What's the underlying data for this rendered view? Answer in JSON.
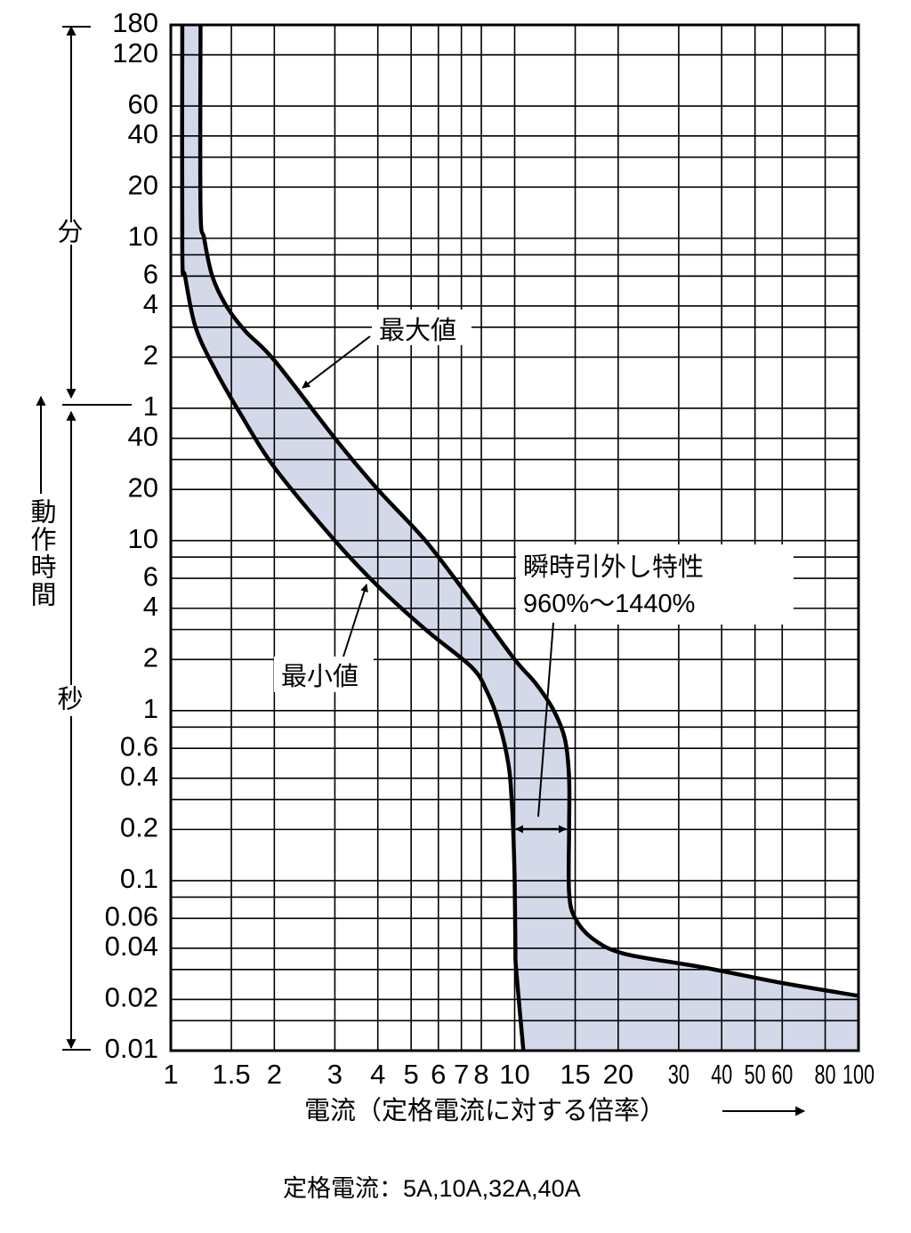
{
  "chart_data": {
    "type": "area",
    "title": "",
    "xlabel": "電流（定格電流に対する倍率）",
    "ylabel": "動作時間",
    "x_scale": "log",
    "y_scale": "log",
    "xlim": [
      1,
      100
    ],
    "ylim_seconds": [
      0.01,
      10800
    ],
    "grid": true,
    "fill_color": "#d3d9e8",
    "line_color": "#000000",
    "x_ticks": [
      {
        "value": 1,
        "label": "1"
      },
      {
        "value": 1.5,
        "label": "1.5"
      },
      {
        "value": 2,
        "label": "2"
      },
      {
        "value": 3,
        "label": "3"
      },
      {
        "value": 4,
        "label": "4"
      },
      {
        "value": 5,
        "label": "5"
      },
      {
        "value": 6,
        "label": "6"
      },
      {
        "value": 7,
        "label": "7"
      },
      {
        "value": 8,
        "label": "8"
      },
      {
        "value": 10,
        "label": "10"
      },
      {
        "value": 15,
        "label": "15"
      },
      {
        "value": 20,
        "label": "20"
      },
      {
        "value": 30,
        "label": "30"
      },
      {
        "value": 40,
        "label": "40"
      },
      {
        "value": 50,
        "label": "50"
      },
      {
        "value": 60,
        "label": "60"
      },
      {
        "value": 80,
        "label": "80"
      },
      {
        "value": 100,
        "label": "100"
      }
    ],
    "y_ticks_minutes": [
      {
        "value": 180,
        "label": "180"
      },
      {
        "value": 120,
        "label": "120"
      },
      {
        "value": 60,
        "label": "60"
      },
      {
        "value": 40,
        "label": "40"
      },
      {
        "value": 20,
        "label": "20"
      },
      {
        "value": 10,
        "label": "10"
      },
      {
        "value": 6,
        "label": "6"
      },
      {
        "value": 4,
        "label": "4"
      },
      {
        "value": 2,
        "label": "2"
      },
      {
        "value": 1,
        "label": "1"
      }
    ],
    "y_ticks_seconds": [
      {
        "value": 40,
        "label": "40"
      },
      {
        "value": 20,
        "label": "20"
      },
      {
        "value": 10,
        "label": "10"
      },
      {
        "value": 6,
        "label": "6"
      },
      {
        "value": 4,
        "label": "4"
      },
      {
        "value": 2,
        "label": "2"
      },
      {
        "value": 1,
        "label": "1"
      },
      {
        "value": 0.6,
        "label": "0.6"
      },
      {
        "value": 0.4,
        "label": "0.4"
      },
      {
        "value": 0.2,
        "label": "0.2"
      },
      {
        "value": 0.1,
        "label": "0.1"
      },
      {
        "value": 0.06,
        "label": "0.06"
      },
      {
        "value": 0.04,
        "label": "0.04"
      },
      {
        "value": 0.02,
        "label": "0.02"
      },
      {
        "value": 0.01,
        "label": "0.01"
      }
    ],
    "y_extra_gridlines_seconds": [
      7200,
      1800,
      480,
      360,
      180,
      30,
      8,
      3,
      0.8,
      0.3,
      0.08,
      0.03,
      0.015
    ],
    "series": [
      {
        "name": "最大値",
        "points": [
          [
            1.22,
            10800
          ],
          [
            1.22,
            900
          ],
          [
            1.25,
            600
          ],
          [
            1.32,
            360
          ],
          [
            1.45,
            240
          ],
          [
            1.65,
            170
          ],
          [
            2.0,
            115
          ],
          [
            3.0,
            40
          ],
          [
            4.0,
            20
          ],
          [
            5.5,
            10
          ],
          [
            7.5,
            4.4
          ],
          [
            10.0,
            2.0
          ],
          [
            11.5,
            1.45
          ],
          [
            13.0,
            1.0
          ],
          [
            14.0,
            0.68
          ],
          [
            14.4,
            0.4
          ],
          [
            14.4,
            0.2
          ],
          [
            14.4,
            0.085
          ],
          [
            15.0,
            0.06
          ],
          [
            17.0,
            0.045
          ],
          [
            21.0,
            0.037
          ],
          [
            35.0,
            0.031
          ],
          [
            60.0,
            0.025
          ],
          [
            100.0,
            0.021
          ]
        ]
      },
      {
        "name": "最小値",
        "points": [
          [
            1.08,
            10800
          ],
          [
            1.08,
            500
          ],
          [
            1.1,
            360
          ],
          [
            1.18,
            180
          ],
          [
            1.35,
            100
          ],
          [
            1.6,
            55
          ],
          [
            2.0,
            27
          ],
          [
            3.0,
            10
          ],
          [
            4.0,
            5.4
          ],
          [
            5.5,
            3.0
          ],
          [
            7.5,
            1.8
          ],
          [
            8.3,
            1.3
          ],
          [
            9.0,
            0.85
          ],
          [
            9.6,
            0.48
          ],
          [
            9.8,
            0.3
          ],
          [
            9.9,
            0.2
          ],
          [
            10.0,
            0.1
          ],
          [
            10.05,
            0.04
          ],
          [
            10.1,
            0.03
          ],
          [
            10.6,
            0.01
          ]
        ]
      }
    ],
    "annotations": {
      "max_label": "最大値",
      "min_label": "最小値",
      "instant_trip_title": "瞬時引外し特性",
      "instant_trip_range": "960%～1440%",
      "unit_minutes": "分",
      "unit_seconds": "秒",
      "rated_current_note": "定格電流：5A,10A,32A,40A"
    }
  }
}
